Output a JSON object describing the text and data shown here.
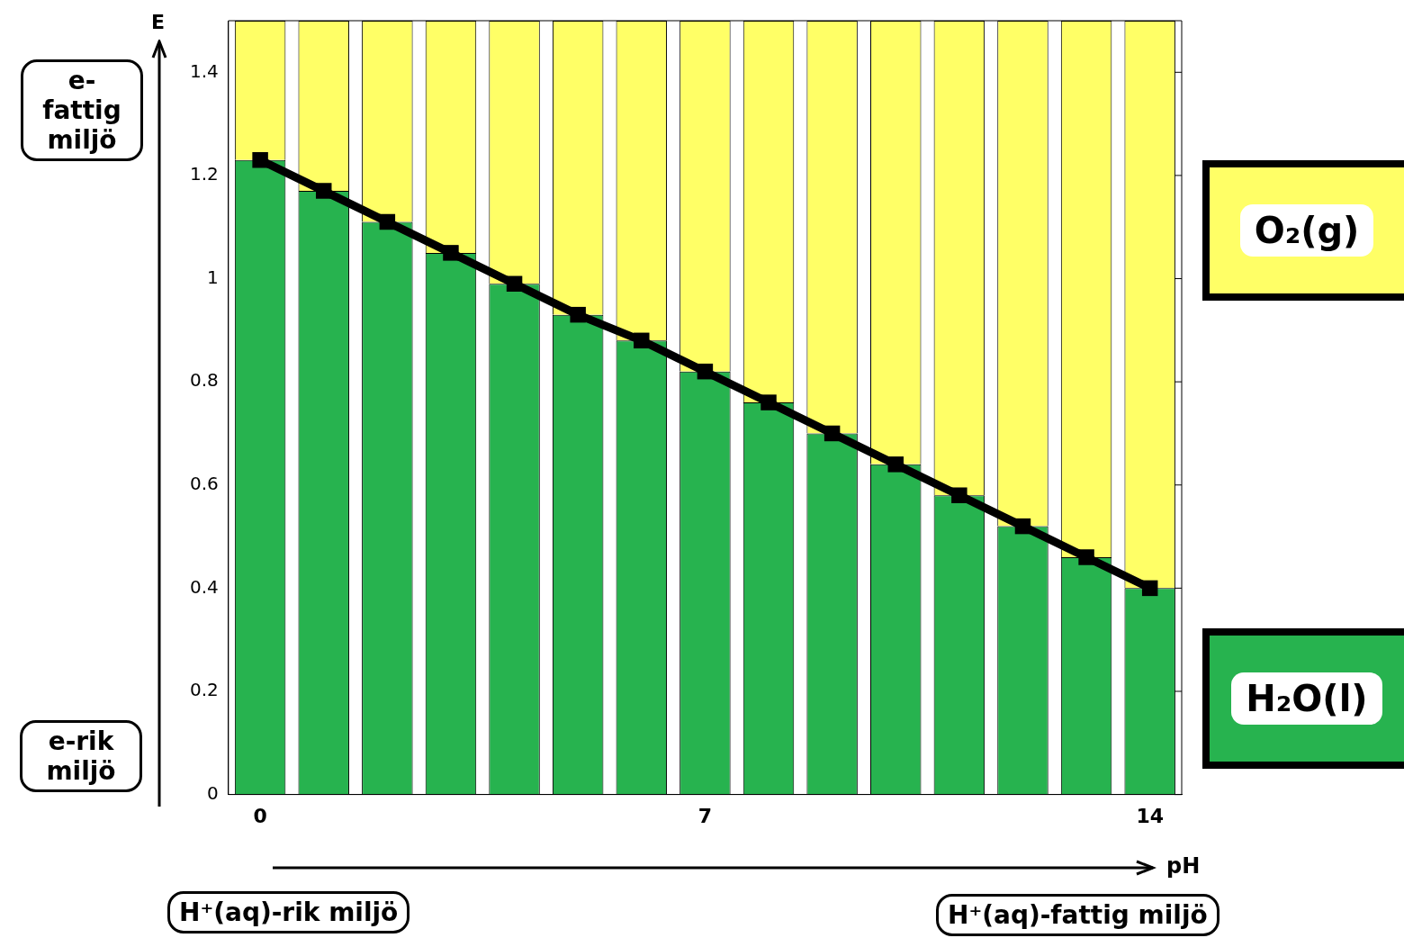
{
  "chart_data": {
    "type": "bar",
    "stacked": true,
    "xlabel": "pH",
    "ylabel": "E",
    "categories": [
      "0",
      null,
      null,
      null,
      null,
      null,
      null,
      "7",
      null,
      null,
      null,
      null,
      null,
      null,
      "14"
    ],
    "series": [
      {
        "name": "H₂O(l)",
        "color": "#27b34f",
        "values": [
          1.23,
          1.17,
          1.11,
          1.05,
          0.99,
          0.93,
          0.88,
          0.82,
          0.76,
          0.7,
          0.64,
          0.58,
          0.52,
          0.46,
          0.4
        ]
      },
      {
        "name": "O₂(g)",
        "color": "#ffff66",
        "values": [
          0.27,
          0.33,
          0.39,
          0.45,
          0.51,
          0.57,
          0.62,
          0.68,
          0.74,
          0.8,
          0.86,
          0.92,
          0.98,
          1.04,
          1.1
        ]
      },
      {
        "type": "line",
        "color": "#000000",
        "marker": "square",
        "values": [
          1.23,
          1.17,
          1.11,
          1.05,
          0.99,
          0.93,
          0.88,
          0.82,
          0.76,
          0.7,
          0.64,
          0.58,
          0.52,
          0.46,
          0.4
        ]
      }
    ],
    "ylim": [
      0,
      1.5
    ],
    "yticks": [
      0,
      0.2,
      0.4,
      0.6,
      0.8,
      1,
      1.2,
      1.4
    ],
    "grid": false,
    "legend": "right",
    "annotations": [
      "e-fattig miljö",
      "e-rik miljö",
      "H⁺(aq)-rik miljö",
      "H⁺(aq)-fattig miljö"
    ]
  }
}
